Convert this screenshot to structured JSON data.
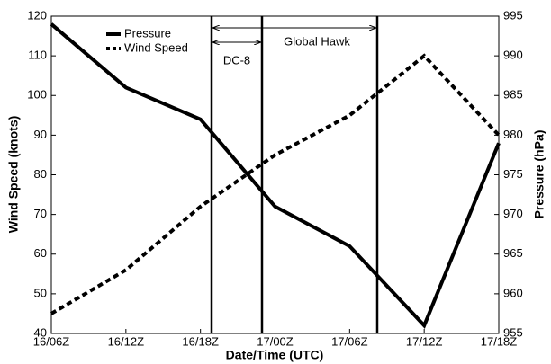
{
  "chart_data": {
    "type": "line",
    "x_label": "Date/Time (UTC)",
    "y_label": "Wind Speed (knots)",
    "y2_label": "Pressure (hPa)",
    "categories": [
      "16/06Z",
      "16/12Z",
      "16/18Z",
      "17/00Z",
      "17/06Z",
      "17/12Z",
      "17/18Z"
    ],
    "series": [
      {
        "name": "Pressure",
        "color": "#000000",
        "linestyle": "solid",
        "axis": "y2",
        "values": [
          994,
          986,
          982,
          971,
          966,
          956,
          979
        ]
      },
      {
        "name": "Wind Speed",
        "color": "#000000",
        "linestyle": "dashed",
        "values": [
          45,
          56,
          72,
          85,
          95,
          110,
          90
        ]
      }
    ],
    "ylim": [
      40,
      120
    ],
    "yticks": [
      40,
      50,
      60,
      70,
      80,
      90,
      100,
      110,
      120
    ],
    "y2lim": [
      955,
      995
    ],
    "y2ticks": [
      955,
      960,
      965,
      970,
      975,
      980,
      985,
      990,
      995
    ],
    "annotations": [
      "DC-8",
      "Global Hawk"
    ],
    "legend": "upper left"
  }
}
